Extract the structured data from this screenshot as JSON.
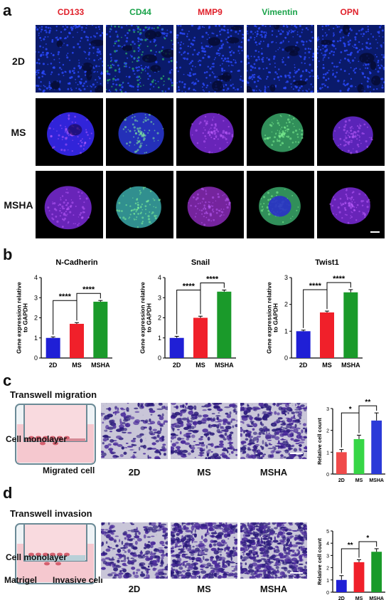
{
  "panels": {
    "a": "a",
    "b": "b",
    "c": "c",
    "d": "d"
  },
  "panel_a": {
    "markers": [
      {
        "label": "CD133",
        "color": "#e0202a"
      },
      {
        "label": "CD44",
        "color": "#1aa34a"
      },
      {
        "label": "MMP9",
        "color": "#e0202a"
      },
      {
        "label": "Vimentin",
        "color": "#1aa34a"
      },
      {
        "label": "OPN",
        "color": "#e0202a"
      }
    ],
    "rows": [
      "2D",
      "MS",
      "MSHA"
    ]
  },
  "panel_b": {
    "charts": [
      {
        "title": "N-Cadherin",
        "ylabel": "Gene expression relative\nto GAPDH",
        "categories": [
          "2D",
          "MS",
          "MSHA"
        ],
        "values": [
          1.0,
          1.7,
          2.8
        ],
        "errors": [
          0.05,
          0.06,
          0.06
        ],
        "ylim": [
          0,
          4
        ],
        "ticks": [
          0,
          1,
          2,
          3,
          4
        ],
        "sig": [
          "****",
          "****"
        ]
      },
      {
        "title": "Snail",
        "ylabel": "Gene expression relative\nto GAPDH",
        "categories": [
          "2D",
          "MS",
          "MSHA"
        ],
        "values": [
          1.0,
          2.0,
          3.3
        ],
        "errors": [
          0.08,
          0.08,
          0.08
        ],
        "ylim": [
          0,
          4
        ],
        "ticks": [
          0,
          1,
          2,
          3,
          4
        ],
        "sig": [
          "****",
          "****"
        ]
      },
      {
        "title": "Twist1",
        "ylabel": "Gene expression relative\nto GAPDH",
        "categories": [
          "2D",
          "MS",
          "MSHA"
        ],
        "values": [
          1.0,
          1.7,
          2.45
        ],
        "errors": [
          0.04,
          0.05,
          0.1
        ],
        "ylim": [
          0,
          3
        ],
        "ticks": [
          0,
          1,
          2,
          3
        ],
        "sig": [
          "****",
          "****"
        ]
      }
    ],
    "colors": [
      "#1f1fd6",
      "#f0202a",
      "#1a9a2a"
    ]
  },
  "panel_c": {
    "title": "Transwell migration",
    "labels": {
      "monolayer": "Cell monolayer",
      "migrated": "Migrated cell"
    },
    "conditions": [
      "2D",
      "MS",
      "MSHA"
    ],
    "chart": {
      "ylabel": "Relative cell count",
      "categories": [
        "2D",
        "MS",
        "MSHA"
      ],
      "values": [
        1.0,
        1.6,
        2.45
      ],
      "errors": [
        0.12,
        0.18,
        0.35
      ],
      "ylim": [
        0,
        3
      ],
      "ticks": [
        0,
        1,
        2,
        3
      ],
      "sig": [
        "*",
        "**"
      ],
      "colors": [
        "#f04a4a",
        "#36d646",
        "#2b3ad8"
      ]
    }
  },
  "panel_d": {
    "title": "Transwell invasion",
    "labels": {
      "monolayer": "Cell monolayer",
      "matrigel": "Matrigel",
      "invasive": "Invasive cell"
    },
    "conditions": [
      "2D",
      "MS",
      "MSHA"
    ],
    "chart": {
      "ylabel": "Relative cell count",
      "categories": [
        "2D",
        "MS",
        "MSHA"
      ],
      "values": [
        1.0,
        2.45,
        3.3
      ],
      "errors": [
        0.35,
        0.2,
        0.25
      ],
      "ylim": [
        0,
        5
      ],
      "ticks": [
        0,
        1,
        2,
        3,
        4,
        5
      ],
      "sig": [
        "**",
        "*"
      ],
      "colors": [
        "#1f1fd6",
        "#f0202a",
        "#1a9a2a"
      ]
    }
  },
  "chart_data": [
    {
      "type": "bar",
      "title": "N-Cadherin",
      "categories": [
        "2D",
        "MS",
        "MSHA"
      ],
      "values": [
        1.0,
        1.7,
        2.8
      ],
      "ylabel": "Gene expression relative to GAPDH",
      "ylim": [
        0,
        4
      ]
    },
    {
      "type": "bar",
      "title": "Snail",
      "categories": [
        "2D",
        "MS",
        "MSHA"
      ],
      "values": [
        1.0,
        2.0,
        3.3
      ],
      "ylabel": "Gene expression relative to GAPDH",
      "ylim": [
        0,
        4
      ]
    },
    {
      "type": "bar",
      "title": "Twist1",
      "categories": [
        "2D",
        "MS",
        "MSHA"
      ],
      "values": [
        1.0,
        1.7,
        2.45
      ],
      "ylabel": "Gene expression relative to GAPDH",
      "ylim": [
        0,
        3
      ]
    },
    {
      "type": "bar",
      "categories": [
        "2D",
        "MS",
        "MSHA"
      ],
      "values": [
        1.0,
        1.6,
        2.45
      ],
      "ylabel": "Relative cell count",
      "ylim": [
        0,
        3
      ]
    },
    {
      "type": "bar",
      "categories": [
        "2D",
        "MS",
        "MSHA"
      ],
      "values": [
        1.0,
        2.45,
        3.3
      ],
      "ylabel": "Relative cell count",
      "ylim": [
        0,
        5
      ]
    }
  ]
}
